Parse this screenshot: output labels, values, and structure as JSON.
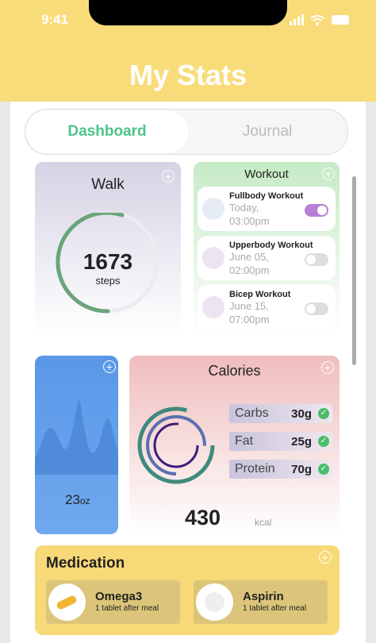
{
  "status_bar": {
    "time": "9:41"
  },
  "header": {
    "title": "My Stats"
  },
  "tabs": [
    {
      "label": "Dashboard",
      "active": true
    },
    {
      "label": "Journal",
      "active": false
    }
  ],
  "walk": {
    "title": "Walk",
    "value": "1673",
    "unit": "steps"
  },
  "workout": {
    "title": "Workout",
    "items": [
      {
        "name": "Fullbody Workout",
        "time": "Today, 03:00pm",
        "on": true
      },
      {
        "name": "Upperbody Workout",
        "time": "June 05, 02:00pm",
        "on": false
      },
      {
        "name": "Bicep Workout",
        "time": "June 15, 07:00pm",
        "on": false
      }
    ]
  },
  "water": {
    "value": "23",
    "unit": "oz"
  },
  "calories": {
    "title": "Calories",
    "macros": [
      {
        "label": "Carbs",
        "value": "30g"
      },
      {
        "label": "Fat",
        "value": "25g"
      },
      {
        "label": "Protein",
        "value": "70g"
      }
    ],
    "total": "430",
    "unit": "kcal"
  },
  "medication": {
    "title": "Medication",
    "items": [
      {
        "name": "Omega3",
        "note": "1 tablet after meal"
      },
      {
        "name": "Aspirin",
        "note": "1 tablet after meal"
      }
    ]
  }
}
